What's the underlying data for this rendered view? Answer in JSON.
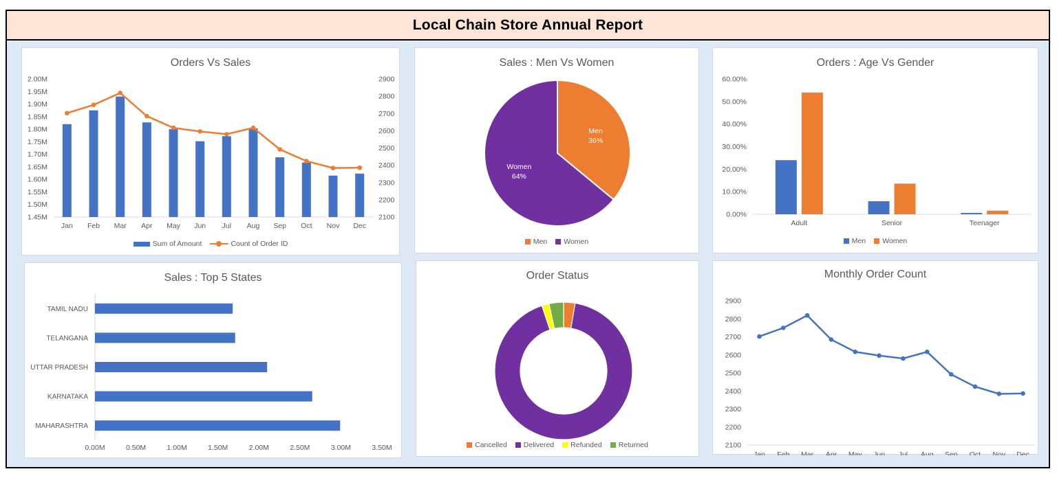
{
  "report_title": "Local Chain Store Annual Report",
  "colors": {
    "blue": "#4472c4",
    "orange": "#ed7d31",
    "purple": "#7030a0",
    "yellow": "#ffff00",
    "green": "#70ad47"
  },
  "chart_data": [
    {
      "id": "orders_vs_sales",
      "type": "bar",
      "title": "Orders Vs Sales",
      "categories": [
        "Jan",
        "Feb",
        "Mar",
        "Apr",
        "May",
        "Jun",
        "Jul",
        "Aug",
        "Sep",
        "Oct",
        "Nov",
        "Dec"
      ],
      "series": [
        {
          "name": "Sum of Amount",
          "type": "bar",
          "axis": "left",
          "values": [
            1820000,
            1875000,
            1930000,
            1827000,
            1800000,
            1752000,
            1772000,
            1803000,
            1688000,
            1667000,
            1615000,
            1623000
          ]
        },
        {
          "name": "Count of Order ID",
          "type": "line",
          "axis": "right",
          "values": [
            2702,
            2750,
            2819,
            2685,
            2617,
            2596,
            2580,
            2617,
            2492,
            2424,
            2384,
            2386
          ]
        }
      ],
      "y_left": {
        "min": 1450000,
        "max": 2000000,
        "step": 50000,
        "ticks": [
          "1.45M",
          "1.50M",
          "1.55M",
          "1.60M",
          "1.65M",
          "1.70M",
          "1.75M",
          "1.80M",
          "1.85M",
          "1.90M",
          "1.95M",
          "2.00M"
        ]
      },
      "y_right": {
        "min": 2100,
        "max": 2900,
        "step": 100,
        "ticks": [
          "2100",
          "2200",
          "2300",
          "2400",
          "2500",
          "2600",
          "2700",
          "2800",
          "2900"
        ]
      },
      "legend": "bottom"
    },
    {
      "id": "sales_men_women",
      "type": "pie",
      "title": "Sales : Men Vs Women",
      "slices": [
        {
          "name": "Men",
          "value": 36,
          "label": "36%"
        },
        {
          "name": "Women",
          "value": 64,
          "label": "64%"
        }
      ],
      "legend": "bottom"
    },
    {
      "id": "orders_age_gender",
      "type": "bar",
      "title": "Orders : Age Vs Gender",
      "categories": [
        "Adult",
        "Senior",
        "Teenager"
      ],
      "series": [
        {
          "name": "Men",
          "values": [
            0.24,
            0.058,
            0.006
          ]
        },
        {
          "name": "Women",
          "values": [
            0.54,
            0.136,
            0.016
          ]
        }
      ],
      "ylim": [
        0,
        0.6
      ],
      "y_ticks": [
        "0.00%",
        "10.00%",
        "20.00%",
        "30.00%",
        "40.00%",
        "50.00%",
        "60.00%"
      ],
      "legend": "bottom"
    },
    {
      "id": "sales_top_states",
      "type": "bar",
      "orientation": "horizontal",
      "title": "Sales : Top 5 States",
      "categories": [
        "TAMIL NADU",
        "TELANGANA",
        "UTTAR PRADESH",
        "KARNATAKA",
        "MAHARASHTRA"
      ],
      "values": [
        1680000,
        1710000,
        2100000,
        2650000,
        2990000
      ],
      "xlim": [
        0,
        3500000
      ],
      "x_ticks": [
        "0.00M",
        "0.50M",
        "1.00M",
        "1.50M",
        "2.00M",
        "2.50M",
        "3.00M",
        "3.50M"
      ]
    },
    {
      "id": "order_status",
      "type": "pie",
      "variant": "donut",
      "title": "Order Status",
      "slices": [
        {
          "name": "Cancelled",
          "value": 2.7
        },
        {
          "name": "Delivered",
          "value": 92.2
        },
        {
          "name": "Refunded",
          "value": 1.7
        },
        {
          "name": "Returned",
          "value": 3.4
        }
      ],
      "legend": "bottom"
    },
    {
      "id": "monthly_order_count",
      "type": "line",
      "title": "Monthly Order Count",
      "categories": [
        "Jan",
        "Feb",
        "Mar",
        "Apr",
        "May",
        "Jun",
        "Jul",
        "Aug",
        "Sep",
        "Oct",
        "Nov",
        "Dec"
      ],
      "values": [
        2702,
        2750,
        2819,
        2685,
        2617,
        2596,
        2580,
        2617,
        2492,
        2424,
        2384,
        2386
      ],
      "ylim": [
        2100,
        2900
      ],
      "y_ticks": [
        "2100",
        "2200",
        "2300",
        "2400",
        "2500",
        "2600",
        "2700",
        "2800",
        "2900"
      ]
    }
  ]
}
